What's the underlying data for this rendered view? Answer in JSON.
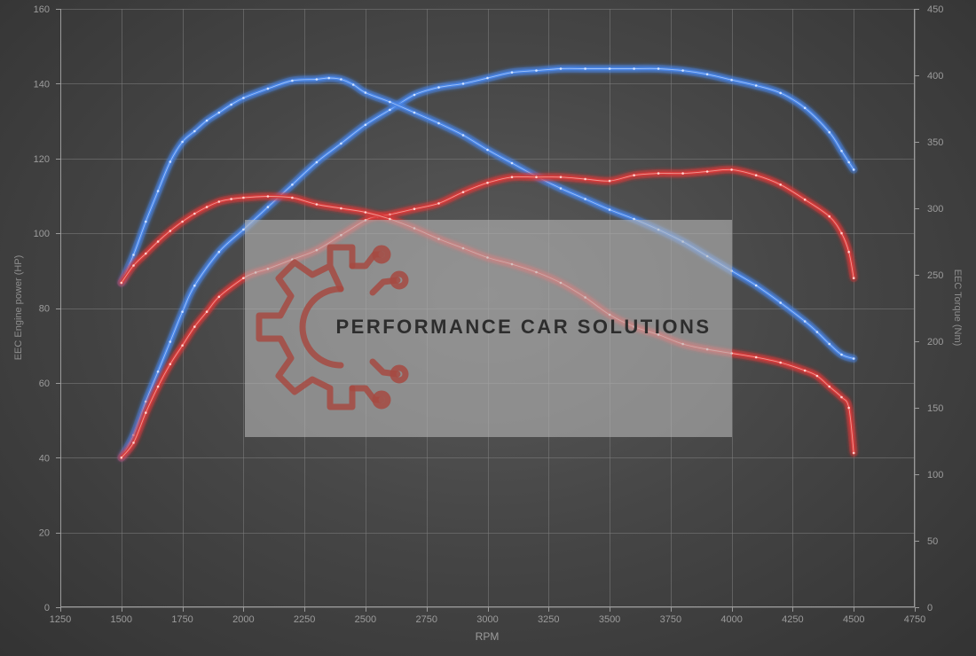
{
  "chart_data": {
    "type": "line",
    "title": "",
    "xlabel": "RPM",
    "ylabel_left": "EEC Engine power (HP)",
    "ylabel_right": "EEC Torque (Nm)",
    "xlim": [
      1250,
      4750
    ],
    "x_ticks": [
      1250,
      1500,
      1750,
      2000,
      2250,
      2500,
      2750,
      3000,
      3250,
      3500,
      3750,
      4000,
      4250,
      4500,
      4750
    ],
    "ylim_left": [
      0,
      160
    ],
    "y_ticks_left": [
      0,
      20,
      40,
      60,
      80,
      100,
      120,
      140,
      160
    ],
    "ylim_right": [
      0,
      450
    ],
    "y_ticks_right": [
      0,
      50,
      100,
      150,
      200,
      250,
      300,
      350,
      400,
      450
    ],
    "grid": true,
    "legend": "none",
    "series": [
      {
        "axis": "left",
        "color": "#4a86e8",
        "x": [
          1500,
          1550,
          1600,
          1650,
          1700,
          1750,
          1800,
          1900,
          2000,
          2100,
          2200,
          2300,
          2400,
          2500,
          2600,
          2700,
          2800,
          2900,
          3000,
          3100,
          3200,
          3300,
          3400,
          3500,
          3600,
          3700,
          3800,
          3900,
          4000,
          4100,
          4200,
          4300,
          4400,
          4450,
          4480,
          4500
        ],
        "y": [
          40,
          46,
          55,
          63,
          71,
          79,
          86,
          95,
          101,
          107,
          113,
          119,
          124,
          129,
          133,
          137,
          139,
          140,
          141.5,
          143,
          143.5,
          144,
          144,
          144,
          144,
          144,
          143.5,
          142.5,
          141,
          139.5,
          137.5,
          133.5,
          127,
          122,
          119,
          117
        ]
      },
      {
        "axis": "right",
        "color": "#4a86e8",
        "x": [
          1500,
          1550,
          1600,
          1650,
          1700,
          1750,
          1800,
          1850,
          1900,
          1950,
          2000,
          2100,
          2200,
          2300,
          2350,
          2400,
          2450,
          2500,
          2600,
          2700,
          2800,
          2900,
          3000,
          3100,
          3200,
          3300,
          3400,
          3500,
          3600,
          3700,
          3800,
          3900,
          4000,
          4100,
          4200,
          4300,
          4350,
          4400,
          4450,
          4500
        ],
        "y": [
          244,
          265,
          290,
          313,
          335,
          350,
          358,
          366,
          372,
          378,
          383,
          390,
          396,
          397,
          398,
          397,
          393,
          387,
          380,
          372,
          364,
          355,
          344,
          334,
          324,
          315,
          307,
          299,
          292,
          284,
          275,
          264,
          253,
          242,
          229,
          215,
          207,
          198,
          190,
          187
        ]
      },
      {
        "axis": "left",
        "color": "#d83a3a",
        "x": [
          1500,
          1550,
          1600,
          1650,
          1700,
          1750,
          1800,
          1850,
          1900,
          2000,
          2050,
          2100,
          2200,
          2300,
          2400,
          2500,
          2550,
          2600,
          2700,
          2800,
          2900,
          3000,
          3100,
          3200,
          3300,
          3400,
          3500,
          3600,
          3700,
          3800,
          3900,
          4000,
          4100,
          4200,
          4300,
          4400,
          4450,
          4480,
          4500
        ],
        "y": [
          40,
          44,
          52,
          59,
          65,
          70,
          75,
          79,
          83,
          88,
          89.5,
          90.5,
          93,
          95.5,
          99.5,
          103.5,
          104.5,
          105,
          106.5,
          108,
          111,
          113.5,
          115,
          115,
          115,
          114.5,
          114,
          115.5,
          116,
          116,
          116.5,
          117,
          115.5,
          113,
          109,
          104.5,
          100,
          95,
          88
        ]
      },
      {
        "axis": "right",
        "color": "#d83a3a",
        "x": [
          1500,
          1550,
          1600,
          1650,
          1700,
          1750,
          1800,
          1850,
          1900,
          1950,
          2000,
          2100,
          2200,
          2300,
          2400,
          2500,
          2600,
          2700,
          2800,
          2900,
          3000,
          3100,
          3200,
          3300,
          3400,
          3500,
          3600,
          3700,
          3800,
          3900,
          4000,
          4100,
          4200,
          4300,
          4350,
          4400,
          4450,
          4480,
          4500
        ],
        "y": [
          244,
          257,
          266,
          275,
          283,
          290,
          296,
          301,
          305,
          307,
          308,
          309,
          308,
          303,
          300,
          297,
          292,
          285,
          277,
          270,
          263,
          258,
          252,
          244,
          233,
          220,
          211,
          205,
          198,
          194,
          191,
          188,
          184,
          178,
          174,
          166,
          158,
          150,
          116
        ]
      }
    ]
  },
  "watermark": {
    "text": "PERFORMANCE CAR SOLUTIONS",
    "logo": "gear-circuit-icon",
    "logo_color": "#a64a42",
    "text_color": "#2d2d2d",
    "panel_color": "#b8b8b8"
  }
}
